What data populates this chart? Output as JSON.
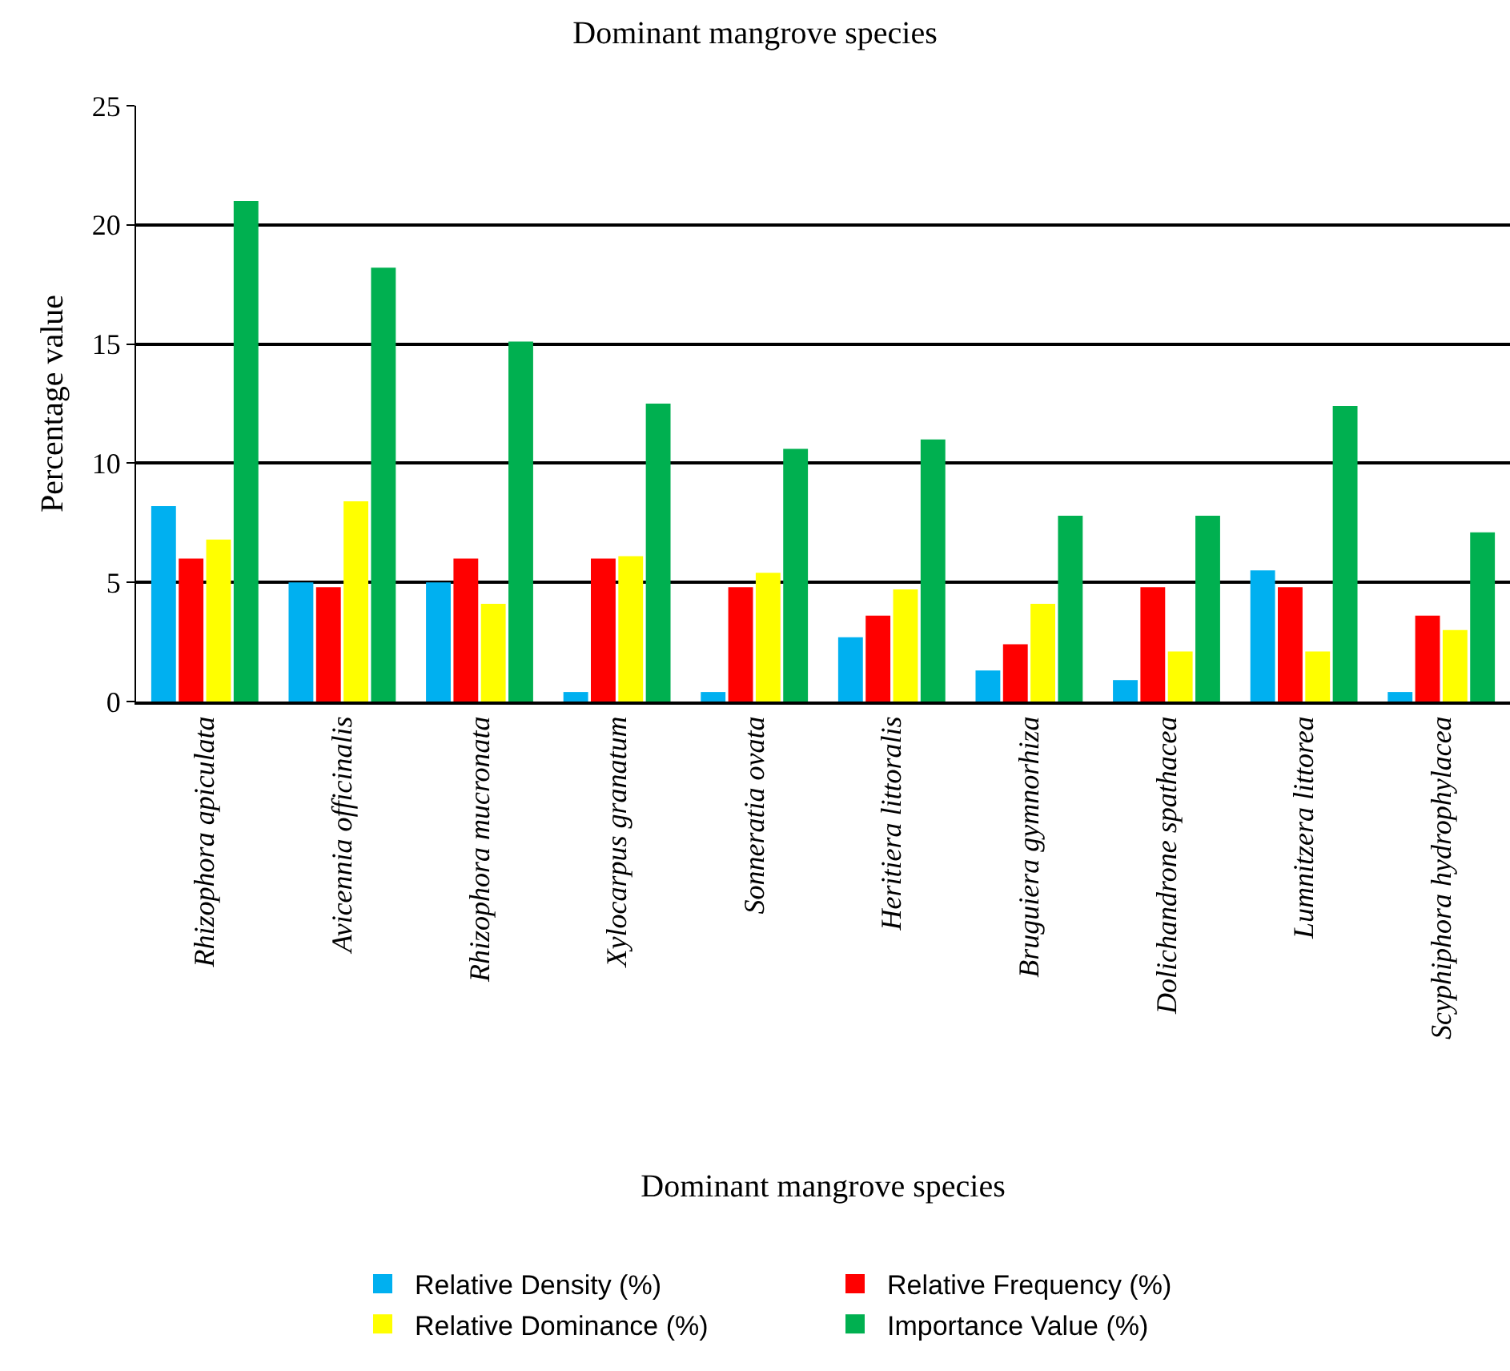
{
  "chart_data": {
    "type": "bar",
    "title": "Dominant mangrove species",
    "xlabel": "Dominant mangrove species",
    "ylabel": "Percentage value",
    "categories": [
      "Rhizophora apiculata",
      "Avicennia officinalis",
      "Rhizophora mucronata",
      "Xylocarpus granatum",
      "Sonneratia ovata",
      "Heritiera littoralis",
      "Bruguiera gymnorhiza",
      "Dolichandrone spathacea",
      "Lumnitzera littorea",
      "Scyphiphora hydrophylacea"
    ],
    "series": [
      {
        "name": "Relative Density (%)",
        "color": "#00b0f0",
        "values": [
          8.2,
          5.0,
          5.0,
          0.4,
          0.4,
          2.7,
          1.3,
          0.9,
          5.5,
          0.4
        ]
      },
      {
        "name": "Relative Frequency (%)",
        "color": "#ff0000",
        "values": [
          6.0,
          4.8,
          6.0,
          6.0,
          4.8,
          3.6,
          2.4,
          4.8,
          4.8,
          3.6
        ]
      },
      {
        "name": "Relative Dominance (%)",
        "color": "#ffff00",
        "values": [
          6.8,
          8.4,
          4.1,
          6.1,
          5.4,
          4.7,
          4.1,
          2.1,
          2.1,
          3.0
        ]
      },
      {
        "name": "Importance Value (%)",
        "color": "#00b050",
        "values": [
          21.0,
          18.2,
          15.1,
          12.5,
          10.6,
          11.0,
          7.8,
          7.8,
          12.4,
          7.1
        ]
      }
    ],
    "ylim": [
      0,
      25
    ],
    "yticks": [
      0,
      5,
      10,
      15,
      20,
      25
    ],
    "grid": "y",
    "legend": "bottom"
  }
}
